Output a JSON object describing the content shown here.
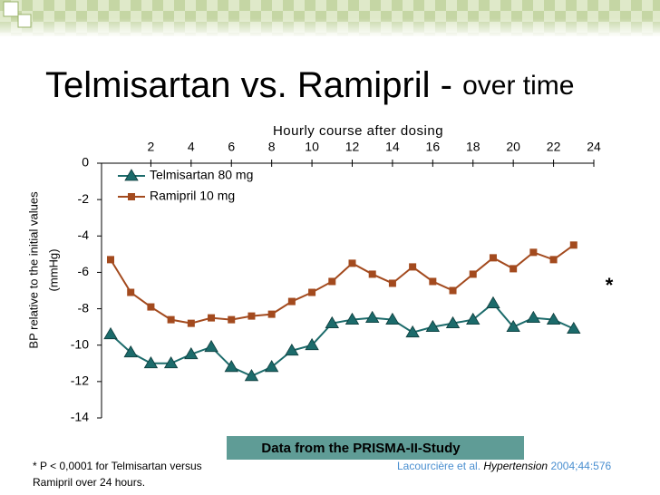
{
  "slide": {
    "title": "Telmisartan vs. Ramipril - ",
    "title_suffix": "over time",
    "footnote_lines": [
      "*  P < 0,0001 for Telmisartan versus",
      "Ramipril over 24 hours."
    ],
    "source_box": "Data from the PRISMA-II-Study",
    "citation": [
      "Lacourcière et al. ",
      "Hypertension",
      " 2004;44:576"
    ],
    "significance_mark": "*"
  },
  "chart_data": {
    "type": "line",
    "xlabel": "Hourly course after dosing",
    "ylabel_lines": [
      "BP relative to the initial values",
      "(mmHg)"
    ],
    "x": [
      0,
      1,
      2,
      3,
      4,
      5,
      6,
      7,
      8,
      9,
      10,
      11,
      12,
      13,
      14,
      15,
      16,
      17,
      18,
      19,
      20,
      21,
      22,
      23
    ],
    "xlim": [
      0,
      24
    ],
    "xticks": [
      2,
      4,
      6,
      8,
      10,
      12,
      14,
      16,
      18,
      20,
      22,
      24
    ],
    "ylim": [
      -14,
      0
    ],
    "yticks": [
      0,
      -2,
      -4,
      -6,
      -8,
      -10,
      -12,
      -14
    ],
    "legend": "upper left",
    "series": [
      {
        "name": "Telmisartan 80 mg",
        "color": "#1c6b6b",
        "marker": "triangle",
        "values": [
          -9.4,
          -10.4,
          -11.0,
          -11.0,
          -10.5,
          -10.1,
          -11.2,
          -11.7,
          -11.2,
          -10.3,
          -10.0,
          -8.8,
          -8.6,
          -8.5,
          -8.6,
          -9.3,
          -9.0,
          -8.8,
          -8.6,
          -7.7,
          -9.0,
          -8.5,
          -8.6,
          -9.1
        ]
      },
      {
        "name": "Ramipril 10 mg",
        "color": "#a34a1e",
        "marker": "square",
        "values": [
          -5.3,
          -7.1,
          -7.9,
          -8.6,
          -8.8,
          -8.5,
          -8.6,
          -8.4,
          -8.3,
          -7.6,
          -7.1,
          -6.5,
          -5.5,
          -6.1,
          -6.6,
          -5.7,
          -6.5,
          -7.0,
          -6.1,
          -5.2,
          -5.8,
          -4.9,
          -5.3,
          -4.5
        ]
      }
    ]
  }
}
